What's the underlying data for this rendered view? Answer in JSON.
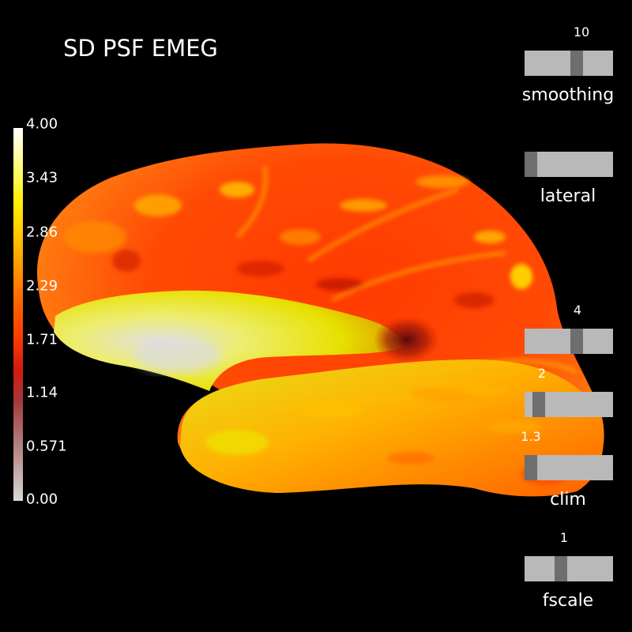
{
  "title": "SD PSF EMEG",
  "colorbar": {
    "ticks": [
      "4.00",
      "3.43",
      "2.86",
      "2.29",
      "1.71",
      "1.14",
      "0.571",
      "0.00"
    ]
  },
  "sliders": {
    "smoothing": {
      "label": "smoothing",
      "value": "10",
      "fraction": 0.6
    },
    "lateral": {
      "label": "lateral",
      "value": "",
      "fraction": 0.0
    },
    "fmax": {
      "label": "",
      "value": "4",
      "fraction": 0.6
    },
    "fmid": {
      "label": "",
      "value": "2",
      "fraction": 0.1
    },
    "fmin": {
      "label": "clim",
      "value": "1.3",
      "fraction": 0.0
    },
    "fscale": {
      "label": "fscale",
      "value": "1",
      "fraction": 0.4
    }
  },
  "colors": {
    "background": "#000000",
    "slider_track": "#b9b9b9",
    "slider_handle": "#6e6e6e"
  }
}
